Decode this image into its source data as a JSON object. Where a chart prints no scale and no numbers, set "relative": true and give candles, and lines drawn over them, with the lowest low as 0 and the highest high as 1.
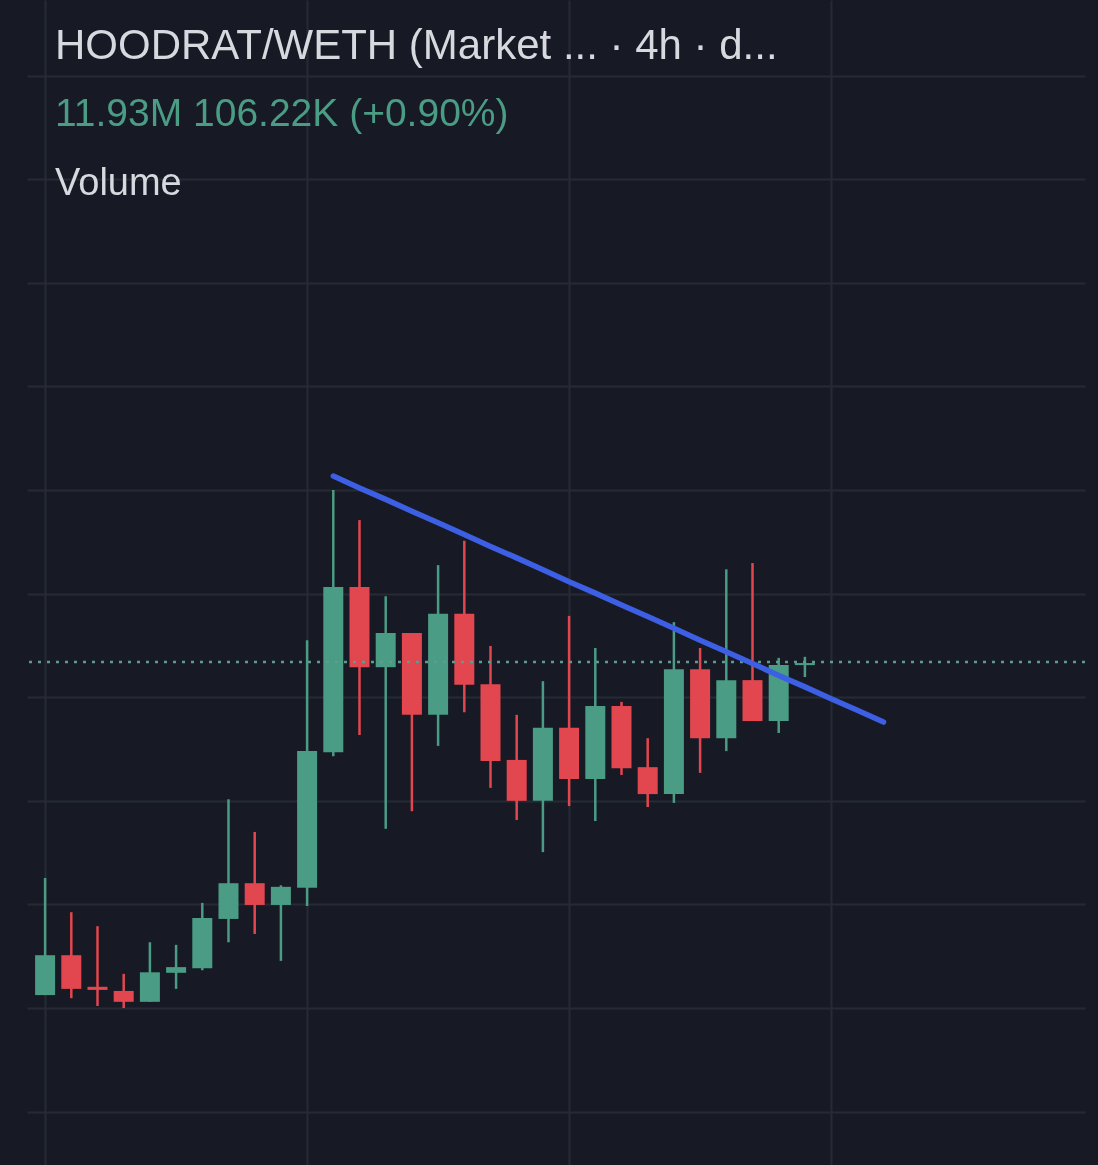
{
  "chart_data": {
    "type": "candlestick",
    "title": "HOODRAT/WETH (Market ... · 4h · d...",
    "subtitle": "11.93M  106.22K (+0.90%)",
    "annotations": [
      "Volume"
    ],
    "relative": true,
    "tick_labels": false,
    "grid": true,
    "categories": [
      null,
      null,
      null,
      null,
      null,
      null,
      null,
      null,
      null,
      null,
      null,
      null,
      null,
      null,
      null,
      null,
      null,
      null,
      null,
      null,
      null,
      null,
      null,
      null,
      null,
      null,
      null,
      null,
      null,
      null,
      null,
      null,
      null,
      null,
      null,
      null,
      null,
      null,
      null,
      null
    ],
    "ohlc": [
      [
        0.025,
        0.251,
        0.025,
        0.102
      ],
      [
        0.102,
        0.185,
        0.019,
        0.037
      ],
      [
        0.041,
        0.158,
        0.004,
        0.035
      ],
      [
        0.033,
        0.066,
        0,
        0.012
      ],
      [
        0.012,
        0.127,
        0.012,
        0.069
      ],
      [
        0.068,
        0.122,
        0.037,
        0.079
      ],
      [
        0.077,
        0.203,
        0.073,
        0.174
      ],
      [
        0.172,
        0.403,
        0.127,
        0.241
      ],
      [
        0.241,
        0.34,
        0.143,
        0.199
      ],
      [
        0.199,
        0.237,
        0.091,
        0.234
      ],
      [
        0.232,
        0.71,
        0.197,
        0.496
      ],
      [
        0.494,
        1,
        0.486,
        0.813
      ],
      [
        0.813,
        0.942,
        0.527,
        0.658
      ],
      [
        0.658,
        0.795,
        0.346,
        0.724
      ],
      [
        0.724,
        0.724,
        0.38,
        0.566
      ],
      [
        0.566,
        0.855,
        0.506,
        0.761
      ],
      [
        0.761,
        0.902,
        0.571,
        0.624
      ],
      [
        0.625,
        0.699,
        0.425,
        0.477
      ],
      [
        0.479,
        0.566,
        0.363,
        0.4
      ],
      [
        0.4,
        0.631,
        0.301,
        0.541
      ],
      [
        0.541,
        0.757,
        0.39,
        0.442
      ],
      [
        0.442,
        0.695,
        0.361,
        0.583
      ],
      [
        0.583,
        0.591,
        0.45,
        0.463
      ],
      [
        0.465,
        0.521,
        0.388,
        0.413
      ],
      [
        0.413,
        0.745,
        0.396,
        0.654
      ],
      [
        0.654,
        0.695,
        0.454,
        0.521
      ],
      [
        0.521,
        0.847,
        0.496,
        0.633
      ],
      [
        0.633,
        0.859,
        0.554,
        0.554
      ],
      [
        0.554,
        0.676,
        0.531,
        0.662
      ],
      [
        0.662,
        0.678,
        0.639,
        0.666
      ],
      null,
      null,
      null,
      null,
      null,
      null,
      null,
      null,
      null,
      null
    ],
    "colors": [
      "#4a9c85",
      "#e2474f",
      "#e2474f",
      "#e2474f",
      "#4a9c85",
      "#4a9c85",
      "#4a9c85",
      "#4a9c85",
      "#e2474f",
      "#4a9c85",
      "#4a9c85",
      "#4a9c85",
      "#e2474f",
      "#4a9c85",
      "#e2474f",
      "#4a9c85",
      "#e2474f",
      "#e2474f",
      "#e2474f",
      "#4a9c85",
      "#e2474f",
      "#4a9c85",
      "#e2474f",
      "#e2474f",
      "#4a9c85",
      "#e2474f",
      "#4a9c85",
      "#e2474f",
      "#4a9c85",
      "#4a9c85",
      null,
      null,
      null,
      null,
      null,
      null,
      null,
      null,
      null,
      null
    ],
    "series": [
      {
        "type": "line",
        "color": "#3d5fe3",
        "values": [
          null,
          null,
          null,
          null,
          null,
          null,
          null,
          null,
          null,
          null,
          null,
          1.027,
          1.004,
          0.982,
          0.959,
          0.937,
          0.914,
          0.891,
          0.869,
          0.846,
          0.823,
          0.801,
          0.778,
          0.756,
          0.733,
          0.71,
          0.688,
          0.665,
          0.642,
          0.62,
          0.597,
          0.575,
          0.552,
          null,
          null,
          null,
          null,
          null,
          null,
          null
        ]
      }
    ],
    "ref_lines": [
      {
        "axis": "y",
        "value": 0.668,
        "color": "#5c9c91",
        "line_style": "dotted"
      }
    ]
  }
}
